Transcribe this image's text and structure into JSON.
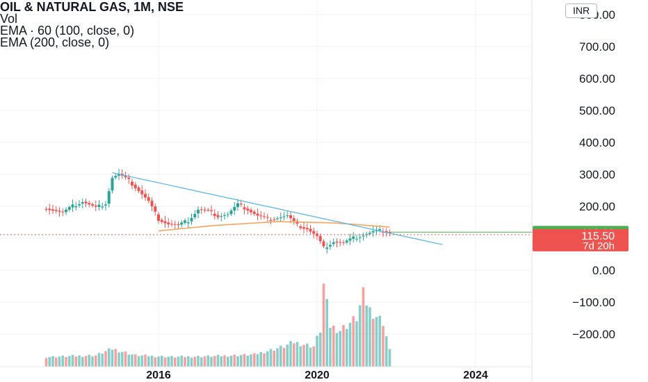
{
  "legend": {
    "title": "OIL & NATURAL GAS, 1M, NSE",
    "vol": "Vol",
    "ema1": "EMA · 60 (100, close, 0)",
    "ema2": "EMA (200, close, 0)"
  },
  "currency_button": "INR",
  "colors": {
    "up": "#26a69a",
    "down": "#ef5350",
    "trendline": "#4fb3e6",
    "ema_orange": "#f7a35c",
    "ema_green": "#4caf50",
    "grid": "#eef0f3",
    "axis_text": "#131722"
  },
  "chart_data": {
    "type": "candlestick",
    "title": "OIL & NATURAL GAS, 1M, NSE",
    "x_range": [
      "2013-03",
      "2025-08"
    ],
    "ylim": [
      -250,
      830
    ],
    "y_ticks": [
      "800.00",
      "700.00",
      "600.00",
      "500.00",
      "400.00",
      "300.00",
      "200.00",
      "0.00",
      "−100.00",
      "−200.00"
    ],
    "y_tick_values": [
      800,
      700,
      600,
      500,
      400,
      300,
      200,
      0,
      -100,
      -200
    ],
    "x_ticks": [
      "2016",
      "2020",
      "2024"
    ],
    "x_tick_dates": [
      "2016-01",
      "2020-01",
      "2024-01"
    ],
    "price_labels": [
      {
        "value": "118.90",
        "sub": "",
        "price": 118.9,
        "color": "#4caf50"
      },
      {
        "value": "115.50",
        "sub": "7d 20h",
        "price": 115.5,
        "color": "#ef5350"
      }
    ],
    "candles_monthly_close": [
      {
        "date": "2013-03",
        "close": 195
      },
      {
        "date": "2013-08",
        "close": 180
      },
      {
        "date": "2013-11",
        "close": 200
      },
      {
        "date": "2014-02",
        "close": 215
      },
      {
        "date": "2014-06",
        "close": 195
      },
      {
        "date": "2014-09",
        "close": 210
      },
      {
        "date": "2014-11",
        "close": 290
      },
      {
        "date": "2015-01",
        "close": 300
      },
      {
        "date": "2015-04",
        "close": 280
      },
      {
        "date": "2015-07",
        "close": 250
      },
      {
        "date": "2015-10",
        "close": 215
      },
      {
        "date": "2016-01",
        "close": 160
      },
      {
        "date": "2016-04",
        "close": 145
      },
      {
        "date": "2016-07",
        "close": 140
      },
      {
        "date": "2016-10",
        "close": 155
      },
      {
        "date": "2017-01",
        "close": 190
      },
      {
        "date": "2017-04",
        "close": 185
      },
      {
        "date": "2017-07",
        "close": 170
      },
      {
        "date": "2017-10",
        "close": 175
      },
      {
        "date": "2018-01",
        "close": 205
      },
      {
        "date": "2018-04",
        "close": 190
      },
      {
        "date": "2018-07",
        "close": 170
      },
      {
        "date": "2018-10",
        "close": 160
      },
      {
        "date": "2019-01",
        "close": 165
      },
      {
        "date": "2019-04",
        "close": 170
      },
      {
        "date": "2019-07",
        "close": 140
      },
      {
        "date": "2019-10",
        "close": 130
      },
      {
        "date": "2020-01",
        "close": 105
      },
      {
        "date": "2020-03",
        "close": 70
      },
      {
        "date": "2020-06",
        "close": 90
      },
      {
        "date": "2020-09",
        "close": 85
      },
      {
        "date": "2020-12",
        "close": 100
      },
      {
        "date": "2021-03",
        "close": 110
      },
      {
        "date": "2021-06",
        "close": 120
      },
      {
        "date": "2021-09",
        "close": 125
      },
      {
        "date": "2021-11",
        "close": 118
      }
    ],
    "volume_relative": [
      {
        "date": "2013-03",
        "v": 0.12
      },
      {
        "date": "2014-06",
        "v": 0.14
      },
      {
        "date": "2014-11",
        "v": 0.22
      },
      {
        "date": "2015-06",
        "v": 0.14
      },
      {
        "date": "2016-06",
        "v": 0.12
      },
      {
        "date": "2017-06",
        "v": 0.13
      },
      {
        "date": "2018-06",
        "v": 0.15
      },
      {
        "date": "2019-03",
        "v": 0.25
      },
      {
        "date": "2019-06",
        "v": 0.3
      },
      {
        "date": "2019-12",
        "v": 0.25
      },
      {
        "date": "2020-02",
        "v": 0.45
      },
      {
        "date": "2020-03",
        "v": 1.0
      },
      {
        "date": "2020-05",
        "v": 0.5
      },
      {
        "date": "2020-08",
        "v": 0.45
      },
      {
        "date": "2021-01",
        "v": 0.6
      },
      {
        "date": "2021-03",
        "v": 0.88
      },
      {
        "date": "2021-05",
        "v": 0.7
      },
      {
        "date": "2021-09",
        "v": 0.55
      },
      {
        "date": "2021-11",
        "v": 0.2
      }
    ],
    "ema_200": [
      {
        "date": "2016-01",
        "value": 123
      },
      {
        "date": "2017-06",
        "value": 140
      },
      {
        "date": "2019-01",
        "value": 152
      },
      {
        "date": "2020-06",
        "value": 148
      },
      {
        "date": "2021-11",
        "value": 135
      }
    ],
    "trendline": [
      {
        "date": "2014-11",
        "value": 305
      },
      {
        "date": "2023-03",
        "value": 80
      }
    ],
    "grid": true,
    "legend_position": "top-left"
  }
}
